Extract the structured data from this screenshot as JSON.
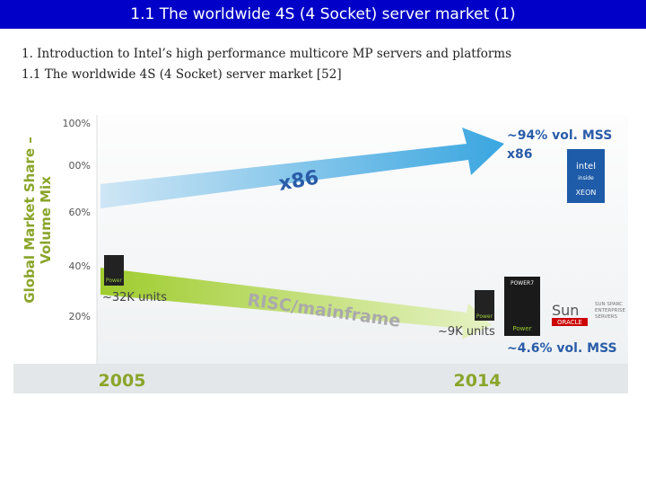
{
  "header": {
    "title": "1.1 The worldwide 4S (4 Socket) server market (1)"
  },
  "body": {
    "lines": [
      "1. Introduction to Intel’s high performance multicore MP servers and platforms",
      "1.1 The worldwide 4S (4 Socket) server market [52]"
    ]
  },
  "figure": {
    "y_axis_label": [
      "Global Market Share –",
      "Volume Mix"
    ],
    "ticks": [
      "100%",
      "00%",
      "60%",
      "40%",
      "20%"
    ],
    "x86_arrow": "x86",
    "risc_arrow": "RISC/mainframe",
    "start_units": "~32K units",
    "end_units": "~9K units",
    "x86_share": [
      "~94% vol. MSS",
      "x86"
    ],
    "risc_share": "~4.6% vol. MSS",
    "years": [
      "2005",
      "2014"
    ],
    "logos": {
      "intel": [
        "intel",
        "inside",
        "XEON"
      ],
      "power": "Power",
      "power7": "POWER7",
      "sun": "Sun",
      "oracle": "ORACLE",
      "sun_sparc": [
        "SUN SPARC",
        "ENTERPRISE",
        "SERVERS"
      ]
    }
  }
}
